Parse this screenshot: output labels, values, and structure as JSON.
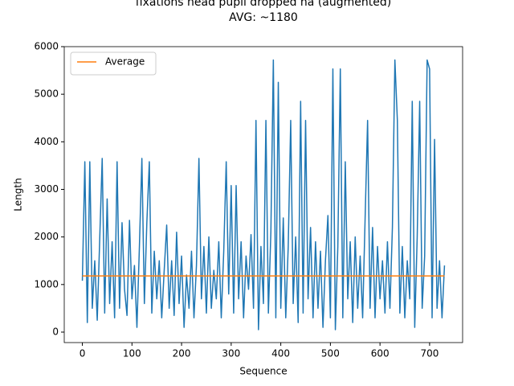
{
  "chart_data": {
    "type": "line",
    "title": "fixations head pupil dropped na (augmented)",
    "subtitle": "AVG: ~1180",
    "x_label": "Sequence",
    "y_label": "Length",
    "xlim": [
      -36.5,
      766.5
    ],
    "ylim": [
      -220,
      6000
    ],
    "xticks": [
      0,
      100,
      200,
      300,
      400,
      500,
      600,
      700
    ],
    "yticks": [
      0,
      1000,
      2000,
      3000,
      4000,
      5000,
      6000
    ],
    "legend": "upper left",
    "series": [
      {
        "color": "#1f77b4",
        "x": [
          0,
          5,
          10,
          15,
          20,
          25,
          30,
          35,
          40,
          45,
          50,
          55,
          60,
          65,
          70,
          75,
          80,
          85,
          90,
          95,
          100,
          105,
          110,
          115,
          120,
          125,
          130,
          135,
          140,
          145,
          150,
          155,
          160,
          165,
          170,
          175,
          180,
          185,
          190,
          195,
          200,
          205,
          210,
          215,
          220,
          225,
          230,
          235,
          240,
          245,
          250,
          255,
          260,
          265,
          270,
          275,
          280,
          285,
          290,
          295,
          300,
          305,
          310,
          315,
          320,
          325,
          330,
          335,
          340,
          345,
          350,
          355,
          360,
          365,
          370,
          375,
          380,
          385,
          390,
          395,
          400,
          405,
          410,
          415,
          420,
          425,
          430,
          435,
          440,
          445,
          450,
          455,
          460,
          465,
          470,
          475,
          480,
          485,
          490,
          495,
          500,
          505,
          510,
          515,
          520,
          525,
          530,
          535,
          540,
          545,
          550,
          555,
          560,
          565,
          570,
          575,
          580,
          585,
          590,
          595,
          600,
          605,
          610,
          615,
          620,
          625,
          630,
          635,
          640,
          645,
          650,
          655,
          660,
          665,
          670,
          675,
          680,
          685,
          690,
          695,
          700,
          705,
          710,
          715,
          720,
          725,
          730
        ],
        "values": [
          1080,
          3580,
          200,
          3580,
          500,
          1500,
          250,
          1950,
          3650,
          400,
          2800,
          600,
          1900,
          300,
          3580,
          500,
          2300,
          900,
          350,
          2350,
          700,
          1400,
          100,
          1800,
          3650,
          600,
          2300,
          3580,
          400,
          1700,
          700,
          1500,
          300,
          1300,
          2250,
          500,
          1500,
          350,
          2100,
          600,
          1600,
          100,
          1200,
          500,
          1700,
          300,
          1400,
          3650,
          700,
          1800,
          400,
          2000,
          500,
          1300,
          700,
          1900,
          300,
          1700,
          3580,
          800,
          3080,
          400,
          3080,
          700,
          1900,
          300,
          1600,
          900,
          2050,
          500,
          4450,
          50,
          1800,
          600,
          4450,
          400,
          2100,
          5720,
          300,
          5250,
          500,
          2400,
          300,
          1800,
          4450,
          600,
          2000,
          200,
          4850,
          400,
          4450,
          700,
          2200,
          300,
          1900,
          500,
          1700,
          100,
          1500,
          2450,
          300,
          5530,
          50,
          1800,
          5530,
          300,
          3580,
          700,
          1900,
          200,
          2000,
          500,
          1600,
          300,
          2400,
          4450,
          500,
          2200,
          300,
          1800,
          700,
          1500,
          400,
          1900,
          500,
          2200,
          5720,
          4450,
          400,
          1800,
          300,
          1500,
          700,
          4850,
          100,
          2000,
          4850,
          500,
          1600,
          5720,
          5530,
          300,
          4050,
          500,
          1500,
          300,
          1400
        ]
      },
      {
        "name": "Average",
        "color": "#ff7f0e",
        "x": [
          0,
          730
        ],
        "values": [
          1180,
          1180
        ]
      }
    ]
  }
}
